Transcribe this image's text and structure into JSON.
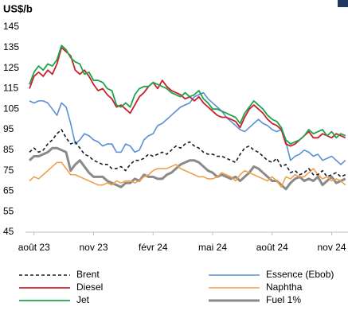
{
  "chart_data": {
    "type": "line",
    "title": "US$/b",
    "ylim": [
      45,
      145
    ],
    "yticks": [
      45,
      55,
      65,
      75,
      85,
      95,
      105,
      115,
      125,
      135,
      145
    ],
    "categories": [
      null,
      "août 23",
      null,
      null,
      null,
      null,
      null,
      null,
      null,
      null,
      null,
      null,
      null,
      null,
      "nov 23",
      null,
      null,
      null,
      null,
      null,
      null,
      null,
      null,
      null,
      null,
      null,
      null,
      "févr 24",
      null,
      null,
      null,
      null,
      null,
      null,
      null,
      null,
      null,
      null,
      null,
      null,
      "mai 24",
      null,
      null,
      null,
      null,
      null,
      null,
      null,
      null,
      null,
      null,
      null,
      null,
      "août 24",
      null,
      null,
      null,
      null,
      null,
      null,
      null,
      null,
      null,
      null,
      null,
      null,
      "nov 24",
      null,
      null,
      null
    ],
    "series": [
      {
        "name": "Brent",
        "color": "#1a1a2e",
        "dashed": true,
        "values": [
          84,
          86,
          84,
          85,
          88,
          90,
          93,
          95,
          91,
          88,
          89,
          86,
          83,
          82,
          80,
          79,
          78,
          78,
          76,
          76,
          77,
          75,
          78,
          80,
          80,
          81,
          83,
          82,
          83,
          84,
          83,
          85,
          87,
          86,
          88,
          89,
          87,
          86,
          84,
          83,
          83,
          82,
          82,
          81,
          80,
          79,
          83,
          86,
          87,
          85,
          84,
          82,
          80,
          79,
          81,
          77,
          78,
          74,
          75,
          73,
          74,
          76,
          73,
          73,
          75,
          72,
          73,
          74,
          72,
          73
        ]
      },
      {
        "name": "Essence (Ebob)",
        "color": "#5a8fd6",
        "values": [
          109,
          108,
          109,
          109,
          108,
          105,
          102,
          108,
          106,
          98,
          88,
          90,
          93,
          92,
          90,
          89,
          87,
          88,
          88,
          84,
          84,
          88,
          87,
          84,
          85,
          90,
          92,
          93,
          97,
          98,
          100,
          102,
          104,
          106,
          107,
          108,
          111,
          112,
          113,
          110,
          108,
          106,
          104,
          101,
          99,
          97,
          95,
          94,
          96,
          98,
          100,
          98,
          97,
          95,
          94,
          95,
          89,
          80,
          82,
          83,
          85,
          84,
          82,
          83,
          80,
          81,
          82,
          80,
          78,
          80
        ]
      },
      {
        "name": "Diesel",
        "color": "#c8202e",
        "values": [
          115,
          121,
          123,
          121,
          124,
          122,
          127,
          135,
          133,
          131,
          124,
          122,
          124,
          121,
          117,
          114,
          115,
          112,
          110,
          106,
          107,
          105,
          103,
          107,
          111,
          113,
          116,
          118,
          115,
          119,
          116,
          114,
          113,
          112,
          110,
          111,
          109,
          111,
          108,
          106,
          104,
          102,
          101,
          101,
          100,
          99,
          96,
          101,
          105,
          107,
          105,
          103,
          100,
          98,
          97,
          95,
          88,
          87,
          88,
          90,
          92,
          94,
          91,
          91,
          93,
          92,
          91,
          93,
          92,
          91
        ]
      },
      {
        "name": "Naphtha",
        "color": "#f0a04b",
        "values": [
          70,
          72,
          71,
          73,
          75,
          77,
          79,
          79,
          76,
          73,
          73,
          72,
          71,
          70,
          69,
          68,
          68,
          69,
          68,
          70,
          69,
          70,
          70,
          69,
          70,
          72,
          73,
          75,
          76,
          76,
          76,
          77,
          78,
          76,
          75,
          74,
          73,
          72,
          72,
          71,
          71,
          72,
          74,
          73,
          72,
          70,
          73,
          75,
          74,
          73,
          72,
          71,
          70,
          72,
          70,
          67,
          72,
          71,
          73,
          72,
          72,
          74,
          76,
          73,
          71,
          72,
          70,
          71,
          70,
          68
        ]
      },
      {
        "name": "Jet",
        "color": "#1fa44a",
        "values": [
          117,
          123,
          126,
          124,
          127,
          126,
          129,
          136,
          134,
          130,
          128,
          127,
          122,
          123,
          119,
          119,
          118,
          115,
          114,
          107,
          106,
          108,
          106,
          112,
          115,
          116,
          116,
          118,
          117,
          116,
          115,
          113,
          112,
          111,
          113,
          111,
          112,
          114,
          110,
          108,
          105,
          105,
          104,
          103,
          102,
          101,
          98,
          103,
          106,
          109,
          107,
          105,
          102,
          100,
          99,
          96,
          90,
          88,
          89,
          90,
          92,
          95,
          93,
          94,
          95,
          92,
          94,
          91,
          93,
          92
        ]
      },
      {
        "name": "Fuel 1%",
        "color": "#8a8a8a",
        "values": [
          80,
          82,
          82,
          83,
          84,
          86,
          86,
          85,
          84,
          75,
          78,
          80,
          77,
          74,
          72,
          72,
          72,
          70,
          69,
          68,
          67,
          69,
          69,
          71,
          70,
          73,
          72,
          72,
          71,
          71,
          73,
          74,
          76,
          78,
          79,
          80,
          80,
          79,
          77,
          75,
          74,
          72,
          73,
          72,
          71,
          72,
          70,
          72,
          74,
          77,
          76,
          74,
          72,
          70,
          70,
          68,
          66,
          69,
          71,
          72,
          70,
          71,
          70,
          72,
          68,
          70,
          72,
          69,
          70,
          71
        ]
      }
    ]
  }
}
